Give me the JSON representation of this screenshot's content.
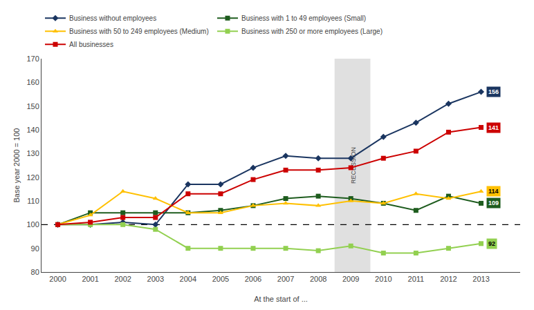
{
  "chart_data": {
    "type": "line",
    "x": [
      2000,
      2001,
      2002,
      2003,
      2004,
      2005,
      2006,
      2007,
      2008,
      2009,
      2010,
      2011,
      2012,
      2013
    ],
    "xlabel": "At the start of ...",
    "ylabel": "Base year 2000 = 100",
    "series": [
      {
        "name": "Business without employees",
        "color": "#1a3560",
        "marker": "diamond",
        "values": [
          100,
          100,
          101,
          100,
          117,
          117,
          124,
          129,
          128,
          128,
          137,
          143,
          151,
          156
        ]
      },
      {
        "name": "Business with 1 to 49 employees (Small)",
        "color": "#1e5c1e",
        "marker": "square",
        "values": [
          100,
          105,
          105,
          105,
          105,
          106,
          108,
          111,
          112,
          111,
          109,
          106,
          112,
          109
        ]
      },
      {
        "name": "Business with 50 to 249 employees (Medium)",
        "color": "#ffc000",
        "marker": "triangle",
        "values": [
          100,
          104,
          114,
          111,
          105,
          105,
          108,
          109,
          108,
          110,
          109,
          113,
          111,
          114
        ]
      },
      {
        "name": "Business with 250 or more employees (Large)",
        "color": "#92d050",
        "marker": "square",
        "values": [
          100,
          100,
          100,
          98,
          90,
          90,
          90,
          90,
          89,
          91,
          88,
          88,
          90,
          92
        ]
      },
      {
        "name": "All businesses",
        "color": "#cc0000",
        "marker": "square",
        "values": [
          100,
          101,
          103,
          103,
          113,
          113,
          119,
          123,
          123,
          124,
          128,
          131,
          139,
          141
        ]
      }
    ],
    "xlim": [
      1999.5,
      2014.2
    ],
    "xticks": [
      2000,
      2001,
      2002,
      2003,
      2004,
      2005,
      2006,
      2007,
      2008,
      2009,
      2010,
      2011,
      2012,
      2013
    ],
    "ylim": [
      80,
      170
    ],
    "yticks": [
      80,
      90,
      100,
      110,
      120,
      130,
      140,
      150,
      160,
      170
    ],
    "grid": false,
    "legend": "upper left",
    "reference_line": 100,
    "shaded_region": {
      "x0": 2008.5,
      "x1": 2009.6,
      "label": "RECESSION",
      "color": "#e0e0e0"
    },
    "annotations": [
      {
        "text": "156",
        "x": 2013,
        "y": 156,
        "color": "#1a3560"
      },
      {
        "text": "141",
        "x": 2013,
        "y": 141,
        "color": "#cc0000"
      },
      {
        "text": "114",
        "x": 2013,
        "y": 114,
        "color": "#ffc000"
      },
      {
        "text": "109",
        "x": 2013,
        "y": 109,
        "color": "#1e5c1e"
      },
      {
        "text": "92",
        "x": 2013,
        "y": 92,
        "color": "#92d050"
      }
    ]
  }
}
